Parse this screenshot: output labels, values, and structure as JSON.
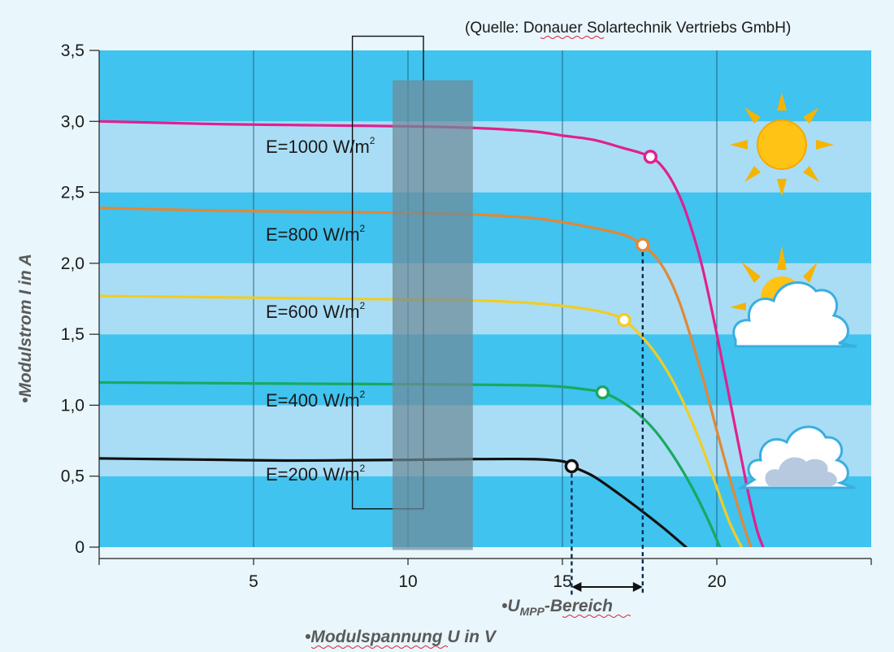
{
  "source_note_prefix": "(Quelle: ",
  "source_note_org": "Donauer",
  "source_note_suffix": " Solartechnik Vertriebs GmbH)",
  "colors": {
    "band_dark": "#40c3ef",
    "band_light": "#a9ddf5",
    "page_bg": "#e9f6fc",
    "range_box": "#6e8a98"
  },
  "chart_data": {
    "type": "line",
    "title": "",
    "xlabel_bullet": "•",
    "xlabel_text": "Modulspannung U in V",
    "ylabel": "•Modulstrom I in A",
    "xlim": [
      0,
      25
    ],
    "ylim": [
      0,
      3.5
    ],
    "x_ticks": [
      5,
      10,
      15,
      20
    ],
    "x_tick_labels": [
      "5",
      "10",
      "15",
      "20"
    ],
    "y_ticks": [
      0,
      0.5,
      1.0,
      1.5,
      2.0,
      2.5,
      3.0,
      3.5
    ],
    "y_tick_labels": [
      "0",
      "0,5",
      "1,0",
      "1,5",
      "2,0",
      "2,5",
      "3,0",
      "3,5"
    ],
    "series": [
      {
        "name": "E=1000 W/m²",
        "label_text": "E=1000 W/m",
        "label_sup": "2",
        "color": "#e0208f",
        "x": [
          0,
          2,
          4,
          6,
          8,
          10,
          12,
          14,
          15,
          16,
          17,
          17.5,
          17.85,
          18.2,
          18.6,
          19.0,
          19.5,
          20.0,
          20.5,
          21.0,
          21.3,
          21.5
        ],
        "y": [
          3.0,
          2.99,
          2.98,
          2.975,
          2.97,
          2.965,
          2.955,
          2.93,
          2.9,
          2.87,
          2.81,
          2.78,
          2.75,
          2.69,
          2.56,
          2.36,
          2.0,
          1.5,
          0.95,
          0.4,
          0.12,
          0.0
        ]
      },
      {
        "name": "E=800 W/m²",
        "label_text": "E=800 W/m",
        "label_sup": "2",
        "color": "#e08838",
        "x": [
          0,
          2,
          4,
          6,
          8,
          10,
          12,
          14,
          15,
          16,
          17,
          17.6,
          18.0,
          18.4,
          18.8,
          19.2,
          19.6,
          20.0,
          20.4,
          20.8,
          21.1
        ],
        "y": [
          2.39,
          2.38,
          2.37,
          2.365,
          2.36,
          2.355,
          2.345,
          2.32,
          2.29,
          2.25,
          2.2,
          2.13,
          2.05,
          1.92,
          1.72,
          1.45,
          1.15,
          0.82,
          0.5,
          0.2,
          0.0
        ]
      },
      {
        "name": "E=600 W/m²",
        "label_text": "E=600 W/m",
        "label_sup": "2",
        "color": "#f2cc25",
        "x": [
          0,
          2,
          4,
          6,
          8,
          10,
          12,
          14,
          15,
          16,
          16.6,
          17.0,
          17.5,
          18.0,
          18.5,
          19.0,
          19.5,
          20.0,
          20.4,
          20.8
        ],
        "y": [
          1.77,
          1.765,
          1.76,
          1.755,
          1.75,
          1.745,
          1.74,
          1.72,
          1.7,
          1.67,
          1.64,
          1.6,
          1.5,
          1.37,
          1.2,
          0.98,
          0.72,
          0.42,
          0.18,
          0.0
        ]
      },
      {
        "name": "E=400 W/m²",
        "label_text": "E=400 W/m",
        "label_sup": "2",
        "color": "#1aa860",
        "x": [
          0,
          2,
          4,
          6,
          8,
          10,
          12,
          14,
          15,
          15.8,
          16.3,
          16.8,
          17.4,
          18.0,
          18.6,
          19.2,
          19.7,
          20.1
        ],
        "y": [
          1.16,
          1.158,
          1.155,
          1.152,
          1.15,
          1.148,
          1.145,
          1.14,
          1.13,
          1.11,
          1.09,
          1.04,
          0.95,
          0.82,
          0.64,
          0.42,
          0.2,
          0.0
        ]
      },
      {
        "name": "E=200 W/m²",
        "label_text": "E=200 W/m",
        "label_sup": "2",
        "color": "#111111",
        "x": [
          0,
          2,
          4,
          6,
          8,
          10,
          12,
          14,
          15,
          15.3,
          16.0,
          16.8,
          17.6,
          18.3,
          19.0
        ],
        "y": [
          0.625,
          0.62,
          0.615,
          0.61,
          0.612,
          0.615,
          0.62,
          0.62,
          0.605,
          0.57,
          0.5,
          0.38,
          0.25,
          0.13,
          0.0
        ]
      }
    ],
    "mpp_points": [
      {
        "series": "E=1000 W/m²",
        "x": 17.85,
        "y": 2.75
      },
      {
        "series": "E=800 W/m²",
        "x": 17.6,
        "y": 2.13
      },
      {
        "series": "E=600 W/m²",
        "x": 17.0,
        "y": 1.6
      },
      {
        "series": "E=400 W/m²",
        "x": 16.3,
        "y": 1.09
      },
      {
        "series": "E=200 W/m²",
        "x": 15.3,
        "y": 0.57
      }
    ],
    "mpp_range": {
      "x_min": 15.3,
      "x_max": 17.6,
      "label_bullet": "•",
      "label_main": "U",
      "label_sub": "MPP",
      "label_tail": "-Bereich"
    },
    "annotations": [
      {
        "kind": "outline-rect",
        "x_min": 8.2,
        "x_max": 10.5,
        "y_min": 0.27,
        "y_max": 3.6
      },
      {
        "kind": "shaded-rect",
        "x_min": 9.5,
        "x_max": 12.1,
        "y_min": -0.02,
        "y_max": 3.29
      }
    ],
    "weather_icons": [
      "sun-icon",
      "sun-behind-cloud-icon",
      "cloud-icon"
    ]
  }
}
